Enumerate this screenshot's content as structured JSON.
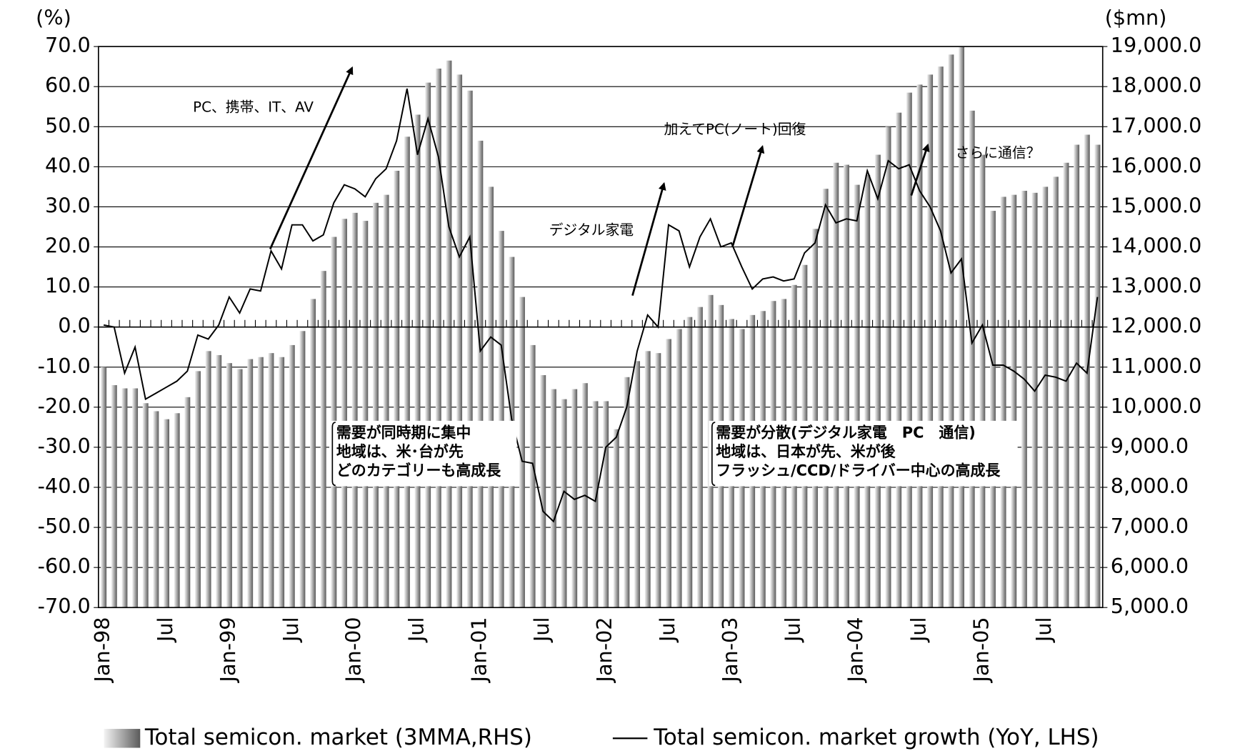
{
  "chart_data": {
    "type": "bar-line",
    "y_label": "(%)",
    "y2_label": "($mn)",
    "categories": [
      "Jan-98",
      null,
      null,
      null,
      null,
      null,
      "Jul",
      null,
      null,
      null,
      null,
      null,
      "Jan-99",
      null,
      null,
      null,
      null,
      null,
      "Jul",
      null,
      null,
      null,
      null,
      null,
      "Jan-00",
      null,
      null,
      null,
      null,
      null,
      "Jul",
      null,
      null,
      null,
      null,
      null,
      "Jan-01",
      null,
      null,
      null,
      null,
      null,
      "Jul",
      null,
      null,
      null,
      null,
      null,
      "Jan-02",
      null,
      null,
      null,
      null,
      null,
      "Jul",
      null,
      null,
      null,
      null,
      null,
      "Jan-03",
      null,
      null,
      null,
      null,
      null,
      "Jul",
      null,
      null,
      null,
      null,
      null,
      "Jan-04",
      null,
      null,
      null,
      null,
      null,
      "Jul",
      null,
      null,
      null,
      null,
      null,
      "Jan-05",
      null,
      null,
      null,
      null,
      null,
      "Jul",
      null,
      null,
      null,
      null,
      null
    ],
    "series": [
      {
        "name": "Total semicon. market (3MMA,RHS)",
        "type": "bar",
        "axis": "y2",
        "color": "#8c8c8c",
        "values": [
          11000,
          10550,
          10470,
          10470,
          10100,
          9900,
          9700,
          9850,
          10250,
          10900,
          11400,
          11300,
          11100,
          10950,
          11200,
          11250,
          11350,
          11250,
          11550,
          11900,
          12700,
          13400,
          14250,
          14700,
          14850,
          14650,
          15100,
          15300,
          15900,
          16750,
          17300,
          18100,
          18450,
          18650,
          18300,
          17900,
          16650,
          15500,
          14400,
          13750,
          12750,
          11550,
          10800,
          10450,
          10200,
          10450,
          10600,
          10150,
          10150,
          9450,
          10750,
          11150,
          11400,
          11350,
          11700,
          11950,
          12250,
          12500,
          12800,
          12550,
          12200,
          11950,
          12300,
          12400,
          12650,
          12700,
          13050,
          13550,
          14450,
          15450,
          16100,
          16050,
          15550,
          15800,
          16300,
          17000,
          17350,
          17850,
          18050,
          18300,
          18500,
          18800,
          19000,
          17400,
          16300,
          14900,
          15250,
          15300,
          15400,
          15350,
          15500,
          15750,
          16100,
          16550,
          16800,
          16550
        ]
      },
      {
        "name": "Total semicon. market growth (YoY, LHS)",
        "type": "line",
        "color": "#000000",
        "values": [
          0.5,
          0,
          -11.5,
          -5,
          -18,
          -16.5,
          -15,
          -13.5,
          -11,
          -2,
          -3,
          0.5,
          7.5,
          3.5,
          9.5,
          9,
          19,
          14.5,
          25.5,
          25.5,
          21.5,
          23,
          31,
          35.5,
          34.5,
          32.5,
          37,
          39.5,
          46.5,
          59.5,
          43,
          52,
          42.5,
          25,
          17.5,
          22.5,
          -6,
          -2.5,
          -4.5,
          -23,
          -33.5,
          -34,
          -46,
          -48.5,
          -41,
          -43,
          -42,
          -43.5,
          -30,
          -27.5,
          -20,
          -6,
          3,
          0,
          25.5,
          24,
          15,
          22.5,
          27,
          20,
          21,
          15,
          9.5,
          12,
          12.5,
          11.5,
          12,
          18.5,
          21,
          30.5,
          26,
          27,
          26.5,
          39,
          32,
          41.5,
          39.5,
          40.5,
          34,
          30,
          24,
          13.5,
          17,
          -4,
          0.5,
          -9.5,
          -9.5,
          -11,
          -13,
          -16,
          -12,
          -12.5,
          -13.5,
          -9,
          -11.5,
          7.5
        ]
      }
    ],
    "ylim": [
      -70,
      70
    ],
    "yticks": [
      {
        "value": -70,
        "label": "-70.0"
      },
      {
        "value": -60,
        "label": "-60.0"
      },
      {
        "value": -50,
        "label": "-50.0"
      },
      {
        "value": -40,
        "label": "-40.0"
      },
      {
        "value": -30,
        "label": "-30.0"
      },
      {
        "value": -20,
        "label": "-20.0"
      },
      {
        "value": -10,
        "label": "-10.0"
      },
      {
        "value": 0,
        "label": "0.0"
      },
      {
        "value": 10,
        "label": "10.0"
      },
      {
        "value": 20,
        "label": "20.0"
      },
      {
        "value": 30,
        "label": "30.0"
      },
      {
        "value": 40,
        "label": "40.0"
      },
      {
        "value": 50,
        "label": "50.0"
      },
      {
        "value": 60,
        "label": "60.0"
      },
      {
        "value": 70,
        "label": "70.0"
      }
    ],
    "y2lim": [
      5000,
      19000
    ],
    "y2ticks": [
      {
        "value": 5000,
        "label": "5,000.0"
      },
      {
        "value": 6000,
        "label": "6,000.0"
      },
      {
        "value": 7000,
        "label": "7,000.0"
      },
      {
        "value": 8000,
        "label": "8,000.0"
      },
      {
        "value": 9000,
        "label": "9,000.0"
      },
      {
        "value": 10000,
        "label": "10,000.0"
      },
      {
        "value": 11000,
        "label": "11,000.0"
      },
      {
        "value": 12000,
        "label": "12,000.0"
      },
      {
        "value": 13000,
        "label": "13,000.0"
      },
      {
        "value": 14000,
        "label": "14,000.0"
      },
      {
        "value": 15000,
        "label": "15,000.0"
      },
      {
        "value": 16000,
        "label": "16,000.0"
      },
      {
        "value": 17000,
        "label": "17,000.0"
      },
      {
        "value": 18000,
        "label": "18,000.0"
      },
      {
        "value": 19000,
        "label": "19,000.0"
      }
    ],
    "grid": true,
    "legend": "bottom",
    "annotations": [
      "PC、携帯、IT、AV",
      "加えてPC(ノート)回復",
      "デジタル家電",
      "さらに通信？"
    ],
    "notes": [
      [
        "需要が同時期に集中",
        "地域は、米･台が先",
        "どのカテゴリーも高成長"
      ],
      [
        "需要が分散(デジタル家電　PC　通信)",
        "地域は、日本が先、米が後",
        "フラッシュ/CCD/ドライバー中心の高成長"
      ]
    ]
  }
}
